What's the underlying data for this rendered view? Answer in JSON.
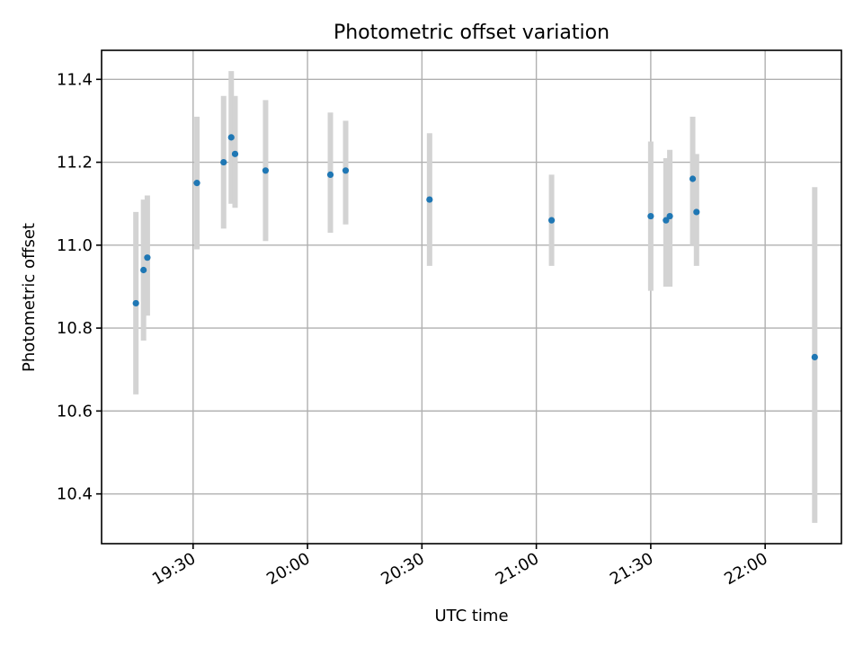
{
  "chart_data": {
    "type": "scatter",
    "title": "Photometric offset variation",
    "xlabel": "UTC time",
    "ylabel": "Photometric offset",
    "xlim": [
      "19:06",
      "22:20"
    ],
    "ylim": [
      10.28,
      11.47
    ],
    "x_ticks": [
      "19:30",
      "20:00",
      "20:30",
      "21:00",
      "21:30",
      "22:00"
    ],
    "y_ticks": [
      "10.4",
      "10.6",
      "10.8",
      "11.0",
      "11.2",
      "11.4"
    ],
    "grid": true,
    "marker_color": "#1f77b4",
    "errorbar_color": "#d3d3d3",
    "points": [
      {
        "x": "19:15",
        "y": 10.86,
        "low": 10.64,
        "high": 11.08
      },
      {
        "x": "19:17",
        "y": 10.94,
        "low": 10.77,
        "high": 11.11
      },
      {
        "x": "19:18",
        "y": 10.97,
        "low": 10.83,
        "high": 11.12
      },
      {
        "x": "19:31",
        "y": 11.15,
        "low": 10.99,
        "high": 11.31
      },
      {
        "x": "19:38",
        "y": 11.2,
        "low": 11.04,
        "high": 11.36
      },
      {
        "x": "19:40",
        "y": 11.26,
        "low": 11.1,
        "high": 11.42
      },
      {
        "x": "19:41",
        "y": 11.22,
        "low": 11.09,
        "high": 11.36
      },
      {
        "x": "19:49",
        "y": 11.18,
        "low": 11.01,
        "high": 11.35
      },
      {
        "x": "20:06",
        "y": 11.17,
        "low": 11.03,
        "high": 11.32
      },
      {
        "x": "20:10",
        "y": 11.18,
        "low": 11.05,
        "high": 11.3
      },
      {
        "x": "20:32",
        "y": 11.11,
        "low": 10.95,
        "high": 11.27
      },
      {
        "x": "21:04",
        "y": 11.06,
        "low": 10.95,
        "high": 11.17
      },
      {
        "x": "21:30",
        "y": 11.07,
        "low": 10.89,
        "high": 11.25
      },
      {
        "x": "21:34",
        "y": 11.06,
        "low": 10.9,
        "high": 11.21
      },
      {
        "x": "21:35",
        "y": 11.07,
        "low": 10.9,
        "high": 11.23
      },
      {
        "x": "21:41",
        "y": 11.16,
        "low": 11.0,
        "high": 11.31
      },
      {
        "x": "21:42",
        "y": 11.08,
        "low": 10.95,
        "high": 11.22
      },
      {
        "x": "22:13",
        "y": 10.73,
        "low": 10.33,
        "high": 11.14
      }
    ]
  }
}
